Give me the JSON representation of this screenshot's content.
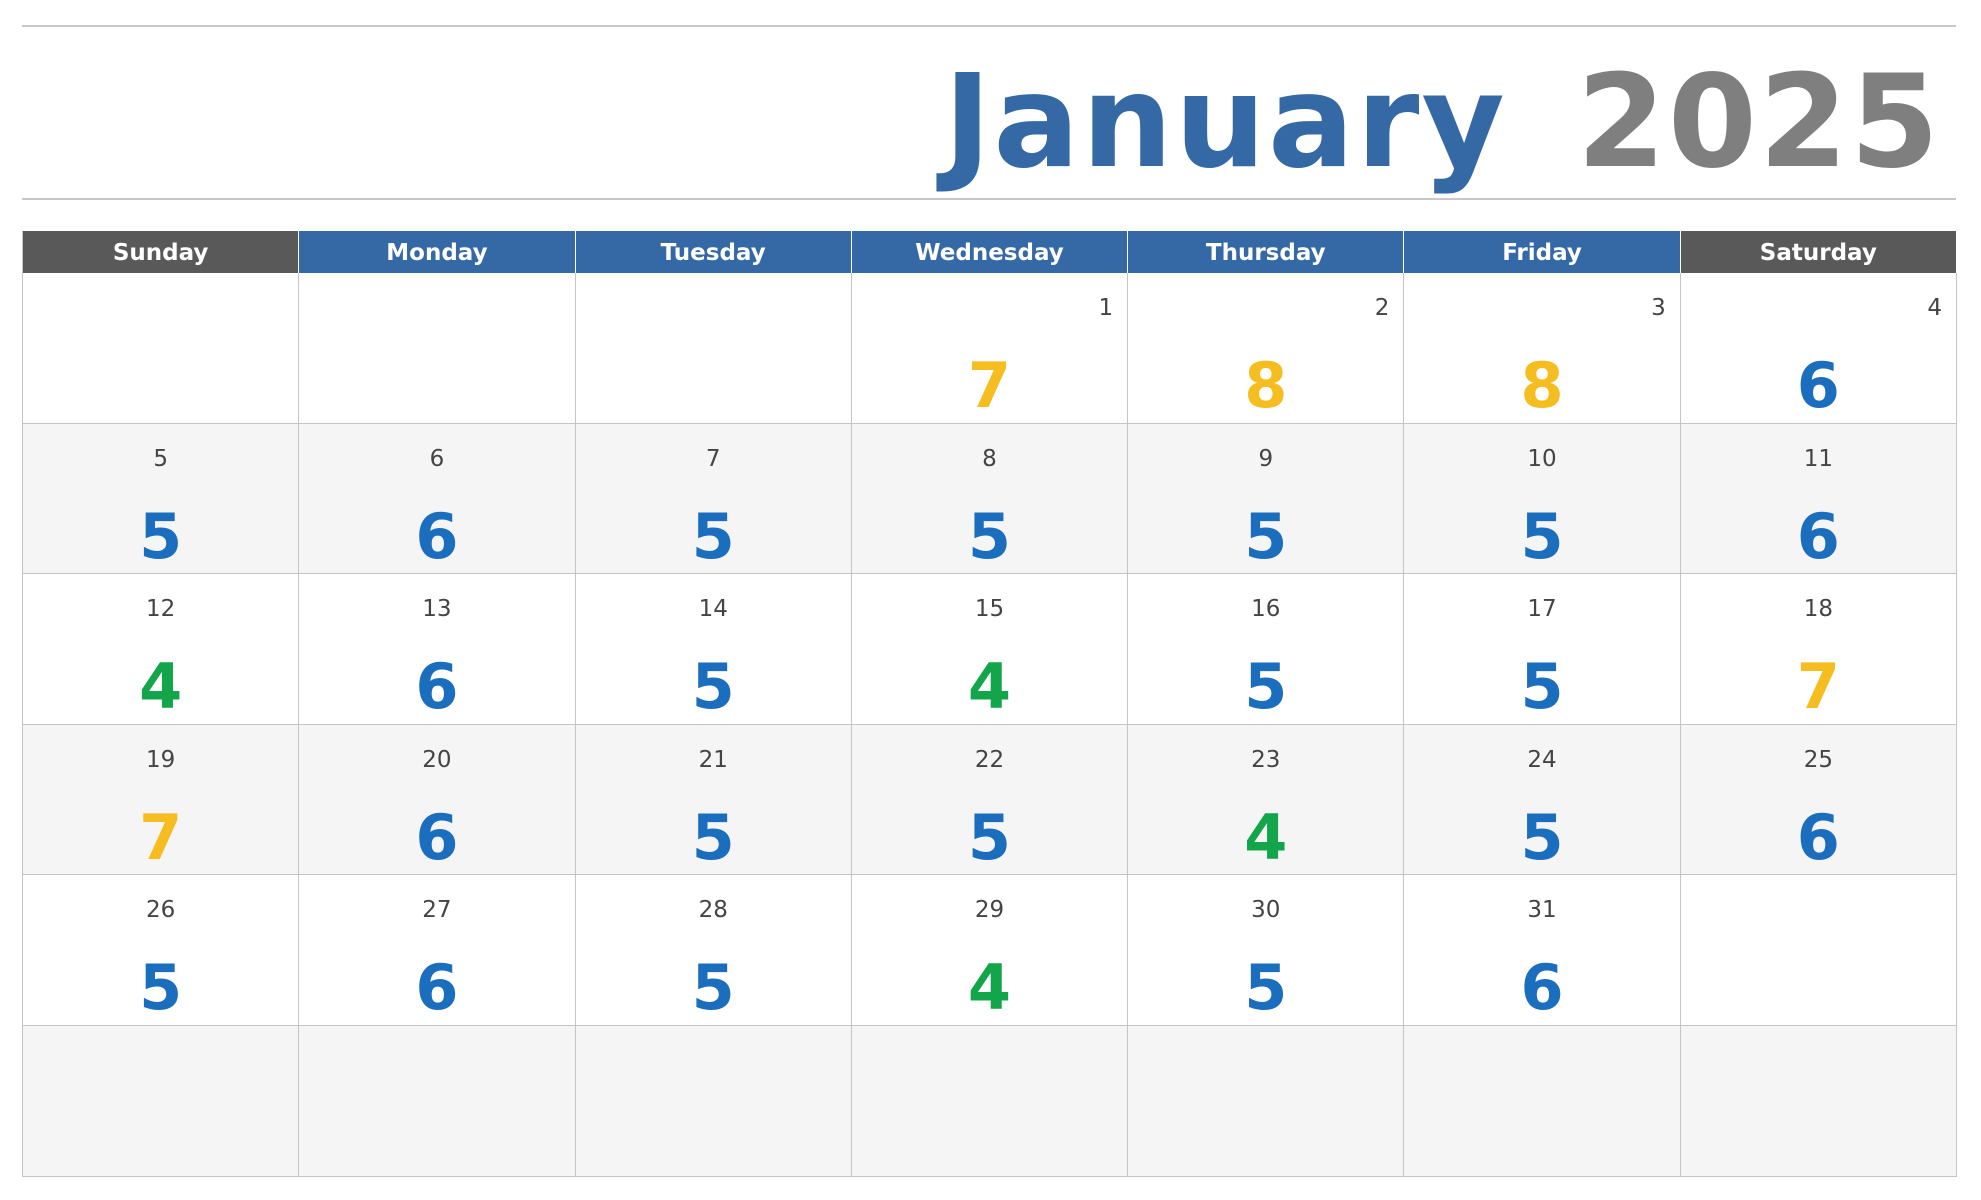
{
  "header": {
    "month": "January",
    "year": "2025"
  },
  "weekdays": [
    {
      "label": "Sunday",
      "color": "#595959"
    },
    {
      "label": "Monday",
      "color": "#3569a5"
    },
    {
      "label": "Tuesday",
      "color": "#3569a5"
    },
    {
      "label": "Wednesday",
      "color": "#3569a5"
    },
    {
      "label": "Thursday",
      "color": "#3569a5"
    },
    {
      "label": "Friday",
      "color": "#3569a5"
    },
    {
      "label": "Saturday",
      "color": "#595959"
    }
  ],
  "weeks": [
    [
      null,
      null,
      null,
      {
        "day": 1,
        "value": 7,
        "color": "#f5bd1f"
      },
      {
        "day": 2,
        "value": 8,
        "color": "#f5bd1f"
      },
      {
        "day": 3,
        "value": 8,
        "color": "#f5bd1f"
      },
      {
        "day": 4,
        "value": 6,
        "color": "#1a6ebd"
      }
    ],
    [
      {
        "day": 5,
        "value": 5,
        "color": "#1a6ebd"
      },
      {
        "day": 6,
        "value": 6,
        "color": "#1a6ebd"
      },
      {
        "day": 7,
        "value": 5,
        "color": "#1a6ebd"
      },
      {
        "day": 8,
        "value": 5,
        "color": "#1a6ebd"
      },
      {
        "day": 9,
        "value": 5,
        "color": "#1a6ebd"
      },
      {
        "day": 10,
        "value": 5,
        "color": "#1a6ebd"
      },
      {
        "day": 11,
        "value": 6,
        "color": "#1a6ebd"
      }
    ],
    [
      {
        "day": 12,
        "value": 4,
        "color": "#12a54a"
      },
      {
        "day": 13,
        "value": 6,
        "color": "#1a6ebd"
      },
      {
        "day": 14,
        "value": 5,
        "color": "#1a6ebd"
      },
      {
        "day": 15,
        "value": 4,
        "color": "#12a54a"
      },
      {
        "day": 16,
        "value": 5,
        "color": "#1a6ebd"
      },
      {
        "day": 17,
        "value": 5,
        "color": "#1a6ebd"
      },
      {
        "day": 18,
        "value": 7,
        "color": "#f5bd1f"
      }
    ],
    [
      {
        "day": 19,
        "value": 7,
        "color": "#f5bd1f"
      },
      {
        "day": 20,
        "value": 6,
        "color": "#1a6ebd"
      },
      {
        "day": 21,
        "value": 5,
        "color": "#1a6ebd"
      },
      {
        "day": 22,
        "value": 5,
        "color": "#1a6ebd"
      },
      {
        "day": 23,
        "value": 4,
        "color": "#12a54a"
      },
      {
        "day": 24,
        "value": 5,
        "color": "#1a6ebd"
      },
      {
        "day": 25,
        "value": 6,
        "color": "#1a6ebd"
      }
    ],
    [
      {
        "day": 26,
        "value": 5,
        "color": "#1a6ebd"
      },
      {
        "day": 27,
        "value": 6,
        "color": "#1a6ebd"
      },
      {
        "day": 28,
        "value": 5,
        "color": "#1a6ebd"
      },
      {
        "day": 29,
        "value": 4,
        "color": "#12a54a"
      },
      {
        "day": 30,
        "value": 5,
        "color": "#1a6ebd"
      },
      {
        "day": 31,
        "value": 6,
        "color": "#1a6ebd"
      },
      null
    ],
    [
      null,
      null,
      null,
      null,
      null,
      null,
      null
    ]
  ]
}
